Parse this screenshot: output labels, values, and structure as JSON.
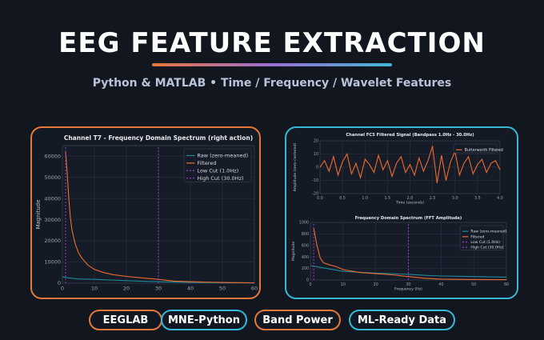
{
  "header": {
    "title": "EEG FEATURE EXTRACTION",
    "subtitle": "Python & MATLAB  •  Time / Frequency / Wavelet Features"
  },
  "colors": {
    "background": "#11161f",
    "accent_orange": "#e8773a",
    "accent_cyan": "#37b7d6",
    "filtered_line": "#ee6b2d",
    "raw_line": "#1f8a9c",
    "cut_line": "#a23cd8"
  },
  "pills": [
    {
      "label": "EEGLAB",
      "style": "orange"
    },
    {
      "label": "MNE-Python",
      "style": "cyan"
    },
    {
      "label": "Band Power",
      "style": "orange"
    },
    {
      "label": "ML-Ready Data",
      "style": "cyan"
    }
  ],
  "chart_data": [
    {
      "type": "line",
      "title": "Channel T7 - Frequency Domain Spectrum (right action)",
      "xlabel": "",
      "ylabel": "Magnitude",
      "xlim": [
        0,
        60
      ],
      "ylim": [
        0,
        65000
      ],
      "x_ticks": [
        "0",
        "10",
        "20",
        "30",
        "40",
        "50",
        "60"
      ],
      "y_ticks": [
        "0",
        "10000",
        "20000",
        "30000",
        "40000",
        "50000",
        "60000"
      ],
      "legend_position": "top-right",
      "grid": true,
      "series": [
        {
          "name": "Raw (zero-meaned)",
          "x": [
            0,
            2,
            5,
            10,
            15,
            20,
            25,
            30,
            40,
            50,
            60
          ],
          "y": [
            3000,
            2500,
            2000,
            1800,
            1500,
            1200,
            900,
            700,
            400,
            250,
            150
          ]
        },
        {
          "name": "Filtered",
          "x": [
            1,
            1.5,
            2,
            2.5,
            3,
            4,
            5,
            6,
            8,
            10,
            13,
            16,
            20,
            25,
            30,
            35,
            40,
            50,
            60
          ],
          "y": [
            62000,
            52000,
            40000,
            31000,
            25000,
            18500,
            14500,
            12000,
            8500,
            6500,
            5000,
            4000,
            3200,
            2500,
            1800,
            1000,
            700,
            350,
            200
          ]
        },
        {
          "name": "Low Cut (1.0Hz)",
          "x": [
            1,
            1
          ],
          "y": [
            0,
            65000
          ]
        },
        {
          "name": "High Cut (30.0Hz)",
          "x": [
            30,
            30
          ],
          "y": [
            0,
            65000
          ]
        }
      ]
    },
    {
      "type": "line",
      "title": "Channel FC5 Filtered Signal (Bandpass 1.0Hz - 30.0Hz)",
      "xlabel": "Time (seconds)",
      "ylabel": "Amplitude (zero-centered)",
      "xlim": [
        0,
        4
      ],
      "ylim": [
        -20,
        20
      ],
      "x_ticks": [
        "0.0",
        "0.5",
        "1.0",
        "1.5",
        "2.0",
        "2.5",
        "3.0",
        "3.5",
        "4.0"
      ],
      "y_ticks": [
        "20",
        "10",
        "0",
        "-10",
        "-20"
      ],
      "legend_position": "top-right",
      "grid": true,
      "series": [
        {
          "name": "Butterworth Filtered",
          "x": [
            0,
            0.1,
            0.2,
            0.3,
            0.4,
            0.5,
            0.6,
            0.7,
            0.8,
            0.9,
            1.0,
            1.1,
            1.2,
            1.3,
            1.4,
            1.5,
            1.6,
            1.7,
            1.8,
            1.9,
            2.0,
            2.1,
            2.2,
            2.3,
            2.4,
            2.5,
            2.6,
            2.7,
            2.8,
            2.9,
            3.0,
            3.1,
            3.2,
            3.3,
            3.4,
            3.5,
            3.6,
            3.7,
            3.8,
            3.9,
            4.0
          ],
          "y": [
            0,
            5,
            -3,
            8,
            -6,
            4,
            10,
            -5,
            3,
            -8,
            6,
            2,
            -4,
            9,
            -2,
            5,
            -7,
            3,
            8,
            -4,
            2,
            -6,
            7,
            -3,
            5,
            16,
            -12,
            9,
            -10,
            4,
            12,
            -6,
            3,
            8,
            -5,
            2,
            6,
            -4,
            3,
            5,
            -2
          ]
        }
      ]
    },
    {
      "type": "line",
      "title": "Frequency Domain Spectrum (FFT Amplitude)",
      "xlabel": "Frequency (Hz)",
      "ylabel": "Magnitude",
      "xlim": [
        0,
        60
      ],
      "ylim": [
        0,
        1000
      ],
      "x_ticks": [
        "0",
        "10",
        "20",
        "30",
        "40",
        "50",
        "60"
      ],
      "y_ticks": [
        "1000",
        "800",
        "600",
        "400",
        "200",
        "0"
      ],
      "legend_position": "top-right",
      "grid": true,
      "series": [
        {
          "name": "Raw (zero-meaned)",
          "x": [
            0,
            5,
            10,
            20,
            30,
            35,
            40,
            50,
            60
          ],
          "y": [
            250,
            200,
            150,
            120,
            100,
            80,
            70,
            60,
            50
          ]
        },
        {
          "name": "Filtered",
          "x": [
            1,
            2,
            3,
            4,
            6,
            8,
            10,
            15,
            20,
            25,
            30,
            35,
            40,
            50,
            60
          ],
          "y": [
            900,
            600,
            380,
            300,
            260,
            230,
            180,
            130,
            110,
            90,
            60,
            30,
            15,
            8,
            5
          ]
        },
        {
          "name": "Low Cut (1.0Hz)",
          "x": [
            1,
            1
          ],
          "y": [
            0,
            1000
          ]
        },
        {
          "name": "High Cut (30.0Hz)",
          "x": [
            30,
            30
          ],
          "y": [
            0,
            1000
          ]
        }
      ]
    }
  ]
}
